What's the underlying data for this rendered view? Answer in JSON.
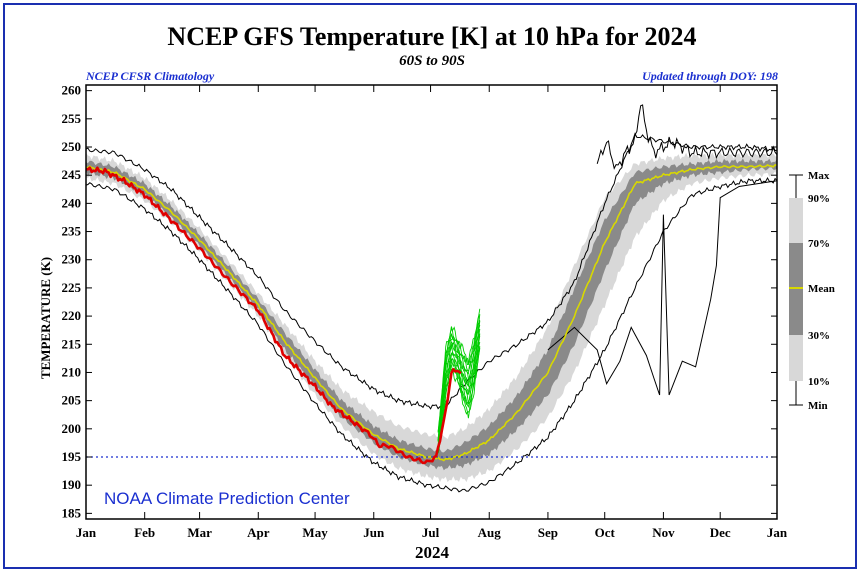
{
  "chart_data": {
    "type": "line",
    "title": "NCEP GFS Temperature [K] at 10 hPa for 2024",
    "subtitle": "60S to 90S",
    "left_note": "NCEP CFSR Climatology",
    "right_note": "Updated through DOY: 198",
    "xlabel": "2024",
    "ylabel": "TEMPERATURE (K)",
    "credit": "NOAA Climate Prediction Center",
    "ylim": [
      184,
      261
    ],
    "xlim": [
      0,
      365
    ],
    "yticks": [
      185,
      190,
      195,
      200,
      205,
      210,
      215,
      220,
      225,
      230,
      235,
      240,
      245,
      250,
      255,
      260
    ],
    "xticks": [
      {
        "label": "Jan",
        "day": 0
      },
      {
        "label": "Feb",
        "day": 31
      },
      {
        "label": "Mar",
        "day": 60
      },
      {
        "label": "Apr",
        "day": 91
      },
      {
        "label": "May",
        "day": 121
      },
      {
        "label": "Jun",
        "day": 152
      },
      {
        "label": "Jul",
        "day": 182
      },
      {
        "label": "Aug",
        "day": 213
      },
      {
        "label": "Sep",
        "day": 244
      },
      {
        "label": "Oct",
        "day": 274
      },
      {
        "label": "Nov",
        "day": 305
      },
      {
        "label": "Dec",
        "day": 335
      },
      {
        "label": "Jan",
        "day": 365
      }
    ],
    "reference_line": 195,
    "legend_labels": [
      "Max",
      "90%",
      "70%",
      "Mean",
      "30%",
      "10%",
      "Min"
    ],
    "colors": {
      "band_outer": "#d8d8d8",
      "band_inner": "#8a8a8a",
      "mean": "#d8d800",
      "observed": "#e00000",
      "forecast": "#00cc00",
      "extremes": "#000000",
      "reference": "#1a2fd0"
    },
    "climatology": {
      "days": [
        0,
        15,
        31,
        45,
        60,
        75,
        91,
        105,
        121,
        135,
        152,
        165,
        180,
        190,
        200,
        213,
        228,
        244,
        258,
        274,
        290,
        305,
        320,
        335,
        350,
        365
      ],
      "mean": [
        246.5,
        245.5,
        242.5,
        238.5,
        233.5,
        228,
        222,
        215.5,
        209,
        203.5,
        199,
        196.5,
        195,
        194.5,
        195.5,
        198,
        203,
        210,
        220,
        233,
        243.5,
        245,
        246,
        246.5,
        246.5,
        246.7
      ],
      "p30": [
        245.5,
        244.5,
        241.5,
        237.5,
        232.5,
        227,
        221,
        214,
        207.5,
        202,
        197.5,
        195,
        193.5,
        193,
        193.5,
        195.5,
        200,
        206,
        215,
        228,
        240,
        243.5,
        245,
        245.5,
        246,
        246.2
      ],
      "p70": [
        247.5,
        246.5,
        243.5,
        239.5,
        234.5,
        229,
        223,
        217,
        210.5,
        205,
        200.5,
        198,
        196.5,
        196,
        197.5,
        200.5,
        206,
        214,
        225,
        237,
        245.5,
        246.5,
        247,
        247.5,
        247.5,
        247.5
      ],
      "p10": [
        244.5,
        243.5,
        240.5,
        236.5,
        231.5,
        226,
        220,
        213,
        206,
        200.5,
        195.5,
        193,
        191.5,
        191,
        191,
        192.5,
        196.5,
        202,
        210,
        222,
        234,
        240.5,
        243.5,
        244.5,
        245,
        245.2
      ],
      "p90": [
        248.5,
        247.5,
        244.5,
        240.5,
        235.5,
        230,
        224,
        218.5,
        212,
        207,
        203,
        200.5,
        199,
        198.5,
        200,
        203.5,
        209.5,
        218,
        229,
        241,
        247,
        248,
        248.5,
        248.5,
        248.5,
        248.5
      ],
      "min": [
        243.5,
        242.5,
        239,
        235,
        230,
        224.5,
        218.5,
        211.5,
        204.5,
        199,
        194,
        191.5,
        190,
        189.5,
        189,
        190.5,
        194,
        198.5,
        205,
        214,
        225,
        235,
        241.5,
        243,
        244,
        244
      ],
      "max": [
        249.5,
        249,
        246,
        242.5,
        237.5,
        232.5,
        227,
        221,
        215.5,
        211,
        207,
        205,
        204,
        204,
        208,
        212,
        215,
        219,
        226,
        240,
        252,
        251,
        250,
        250,
        250,
        249.5
      ]
    },
    "observed_2024": {
      "days": [
        0,
        10,
        20,
        31,
        45,
        60,
        75,
        91,
        105,
        121,
        130,
        140,
        150,
        155,
        160,
        165,
        170,
        175,
        180,
        185,
        190,
        193,
        197,
        198
      ],
      "values": [
        246,
        245.7,
        244,
        241.5,
        237,
        232,
        226.5,
        221,
        213,
        207.5,
        204,
        201.5,
        199,
        197,
        197,
        196,
        195,
        194.5,
        194,
        195,
        203,
        210,
        210.5,
        209.5
      ]
    },
    "forecast_envelope": {
      "days": [
        186,
        190,
        193,
        196,
        199,
        202,
        205,
        208
      ],
      "low": [
        196,
        205,
        210,
        209,
        205,
        202,
        207,
        214
      ],
      "high": [
        199,
        214,
        218,
        216,
        214,
        212,
        216,
        221
      ]
    },
    "climatological_maximum_trace": {
      "days": [
        270,
        275,
        280,
        285,
        290,
        293,
        296,
        300,
        310,
        320,
        335,
        350,
        365
      ],
      "values": [
        247,
        251,
        246,
        249,
        251,
        258,
        253,
        249,
        251,
        249,
        249,
        249,
        249
      ]
    },
    "climatological_minimum_trace": {
      "days": [
        244,
        258,
        270,
        275,
        282,
        288,
        296,
        300,
        303,
        305,
        308,
        315,
        322,
        330,
        333,
        335,
        345,
        365
      ],
      "values": [
        214,
        218,
        214,
        208,
        212,
        218,
        213,
        209,
        206,
        238,
        206,
        212,
        211,
        223,
        229,
        241,
        243,
        244
      ]
    }
  }
}
